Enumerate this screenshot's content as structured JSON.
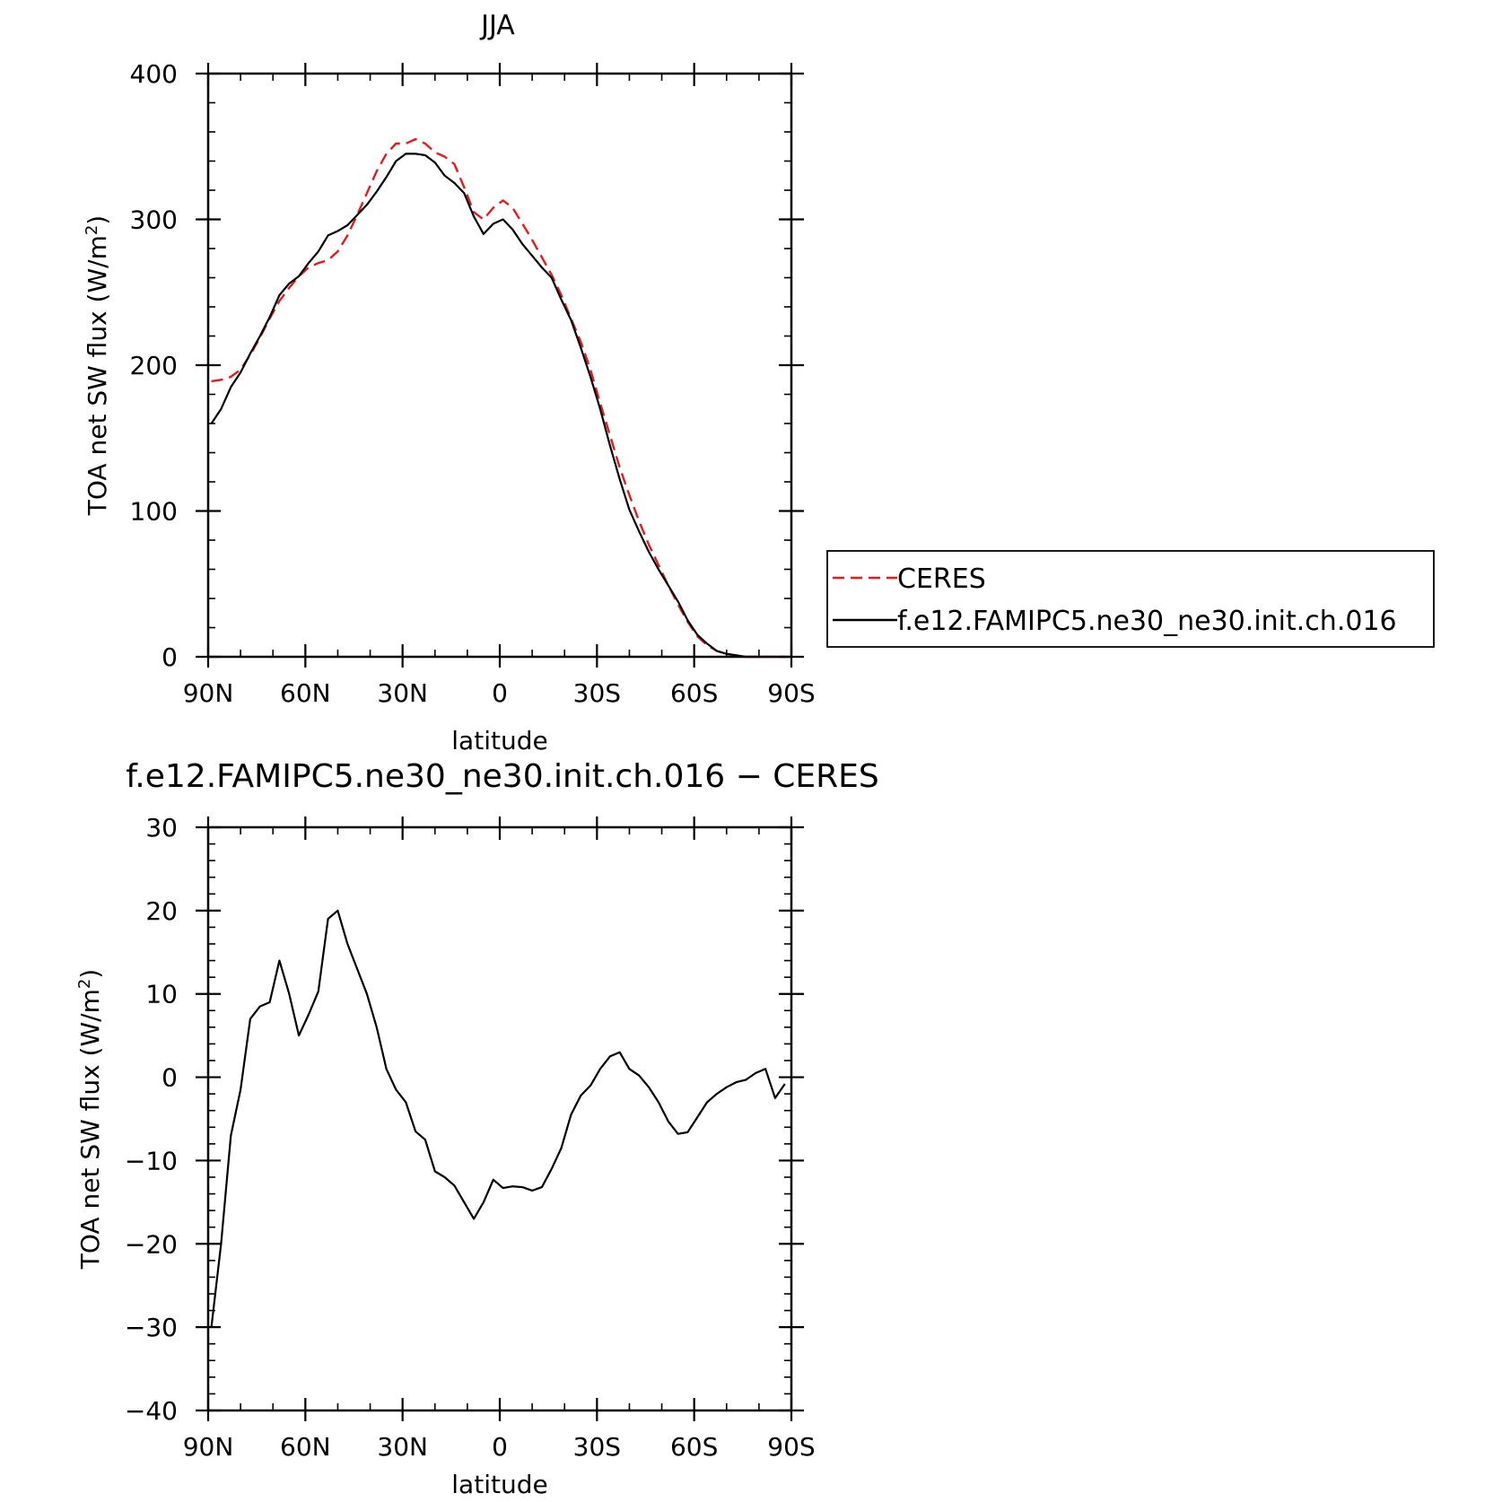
{
  "chart_data": [
    {
      "type": "line",
      "title": "JJA",
      "xlabel": "latitude",
      "ylabel_main": "TOA net SW flux (W/m",
      "ylabel_sup": "2",
      "ylabel_tail": ")",
      "xlim": [
        90,
        -90
      ],
      "ylim": [
        0,
        400
      ],
      "x_ticks": [
        90,
        60,
        30,
        0,
        -30,
        -60,
        -90
      ],
      "x_tick_labels": [
        "90N",
        "60N",
        "30N",
        "0",
        "30S",
        "60S",
        "90S"
      ],
      "y_ticks": [
        0,
        100,
        200,
        300,
        400
      ],
      "y_tick_labels": [
        "0",
        "100",
        "200",
        "300",
        "400"
      ],
      "legend_position": "right",
      "series": [
        {
          "name": "CERES",
          "color": "#e41a1c",
          "style": "dashed",
          "x": [
            89,
            86,
            83,
            80,
            77,
            74,
            71,
            68,
            65,
            62,
            59,
            56,
            53,
            50,
            47,
            44,
            41,
            38,
            35,
            32,
            29,
            26,
            23,
            20,
            17,
            14,
            11,
            8,
            5,
            2,
            -1,
            -4,
            -7,
            -10,
            -13,
            -16,
            -19,
            -22,
            -25,
            -28,
            -31,
            -34,
            -37,
            -40,
            -43,
            -46,
            -49,
            -52,
            -55,
            -58,
            -61,
            -64,
            -67,
            -70,
            -73,
            -76,
            -79,
            -82,
            -85,
            -88
          ],
          "y": [
            189,
            190,
            192,
            197,
            207,
            219,
            232,
            244,
            253,
            261,
            267,
            270,
            272,
            278,
            289,
            303,
            318,
            333,
            345,
            352,
            352,
            355,
            352,
            346,
            343,
            338,
            322,
            305,
            300,
            308,
            313,
            308,
            297,
            286,
            274,
            262,
            248,
            232,
            216,
            197,
            174,
            152,
            130,
            111,
            93,
            77,
            63,
            49,
            36,
            24,
            14,
            8,
            4,
            2,
            1,
            0,
            0,
            0,
            0,
            0
          ]
        },
        {
          "name": "f.e12.FAMIPC5.ne30_ne30.init.ch.016",
          "color": "#000000",
          "style": "solid",
          "x": [
            89,
            86,
            83,
            80,
            77,
            74,
            71,
            68,
            65,
            62,
            59,
            56,
            53,
            50,
            47,
            44,
            41,
            38,
            35,
            32,
            29,
            26,
            23,
            20,
            17,
            14,
            11,
            8,
            5,
            2,
            -1,
            -4,
            -7,
            -10,
            -13,
            -16,
            -19,
            -22,
            -25,
            -28,
            -31,
            -34,
            -37,
            -40,
            -43,
            -46,
            -49,
            -52,
            -55,
            -58,
            -61,
            -64,
            -67,
            -70,
            -73,
            -76,
            -79,
            -82,
            -85,
            -88
          ],
          "y": [
            160,
            170,
            185,
            195,
            208,
            220,
            233,
            248,
            256,
            261,
            270,
            278,
            289,
            292,
            296,
            303,
            310,
            319,
            329,
            340,
            345,
            345,
            344,
            339,
            330,
            325,
            318,
            302,
            290,
            297,
            300,
            293,
            283,
            275,
            267,
            260,
            245,
            231,
            212,
            192,
            170,
            145,
            122,
            101,
            86,
            72,
            60,
            49,
            38,
            25,
            15,
            9,
            4,
            2,
            1,
            0,
            0,
            0,
            0,
            0
          ]
        }
      ]
    },
    {
      "type": "line",
      "title": "f.e12.FAMIPC5.ne30_ne30.init.ch.016 − CERES",
      "xlabel": "latitude",
      "ylabel_main": "TOA net SW flux (W/m",
      "ylabel_sup": "2",
      "ylabel_tail": ")",
      "xlim": [
        90,
        -90
      ],
      "ylim": [
        -40,
        30
      ],
      "x_ticks": [
        90,
        60,
        30,
        0,
        -30,
        -60,
        -90
      ],
      "x_tick_labels": [
        "90N",
        "60N",
        "30N",
        "0",
        "30S",
        "60S",
        "90S"
      ],
      "y_ticks": [
        -40,
        -30,
        -20,
        -10,
        0,
        10,
        20,
        30
      ],
      "y_tick_labels": [
        "−40",
        "−30",
        "−20",
        "−10",
        "0",
        "10",
        "20",
        "30"
      ],
      "series": [
        {
          "name": "",
          "color": "#000000",
          "style": "solid",
          "x": [
            89,
            86,
            83,
            80,
            77,
            74,
            71,
            68,
            65,
            62,
            59,
            56,
            53,
            50,
            47,
            44,
            41,
            38,
            35,
            32,
            29,
            26,
            23,
            20,
            17,
            14,
            11,
            8,
            5,
            2,
            -1,
            -4,
            -7,
            -10,
            -13,
            -16,
            -19,
            -22,
            -25,
            -28,
            -31,
            -34,
            -37,
            -40,
            -43,
            -46,
            -49,
            -52,
            -55,
            -58,
            -61,
            -64,
            -67,
            -70,
            -73,
            -76,
            -79,
            -82,
            -85,
            -88
          ],
          "y": [
            -30,
            -20,
            -7,
            -1.5,
            7,
            8.5,
            9,
            14,
            10,
            5,
            7.5,
            10.3,
            19,
            20,
            16,
            13,
            10,
            6,
            1,
            -1.5,
            -3,
            -6.5,
            -7.5,
            -11.3,
            -12,
            -13,
            -15,
            -17,
            -15,
            -12.3,
            -13.3,
            -13.1,
            -13.2,
            -13.6,
            -13.2,
            -11,
            -8.5,
            -4.5,
            -2.2,
            -1,
            1,
            2.5,
            3,
            1,
            0.2,
            -1.2,
            -3,
            -5.3,
            -6.8,
            -6.6,
            -4.8,
            -3,
            -2,
            -1.2,
            -0.6,
            -0.3,
            0.5,
            1,
            -2.5,
            -0.8
          ]
        }
      ]
    }
  ]
}
